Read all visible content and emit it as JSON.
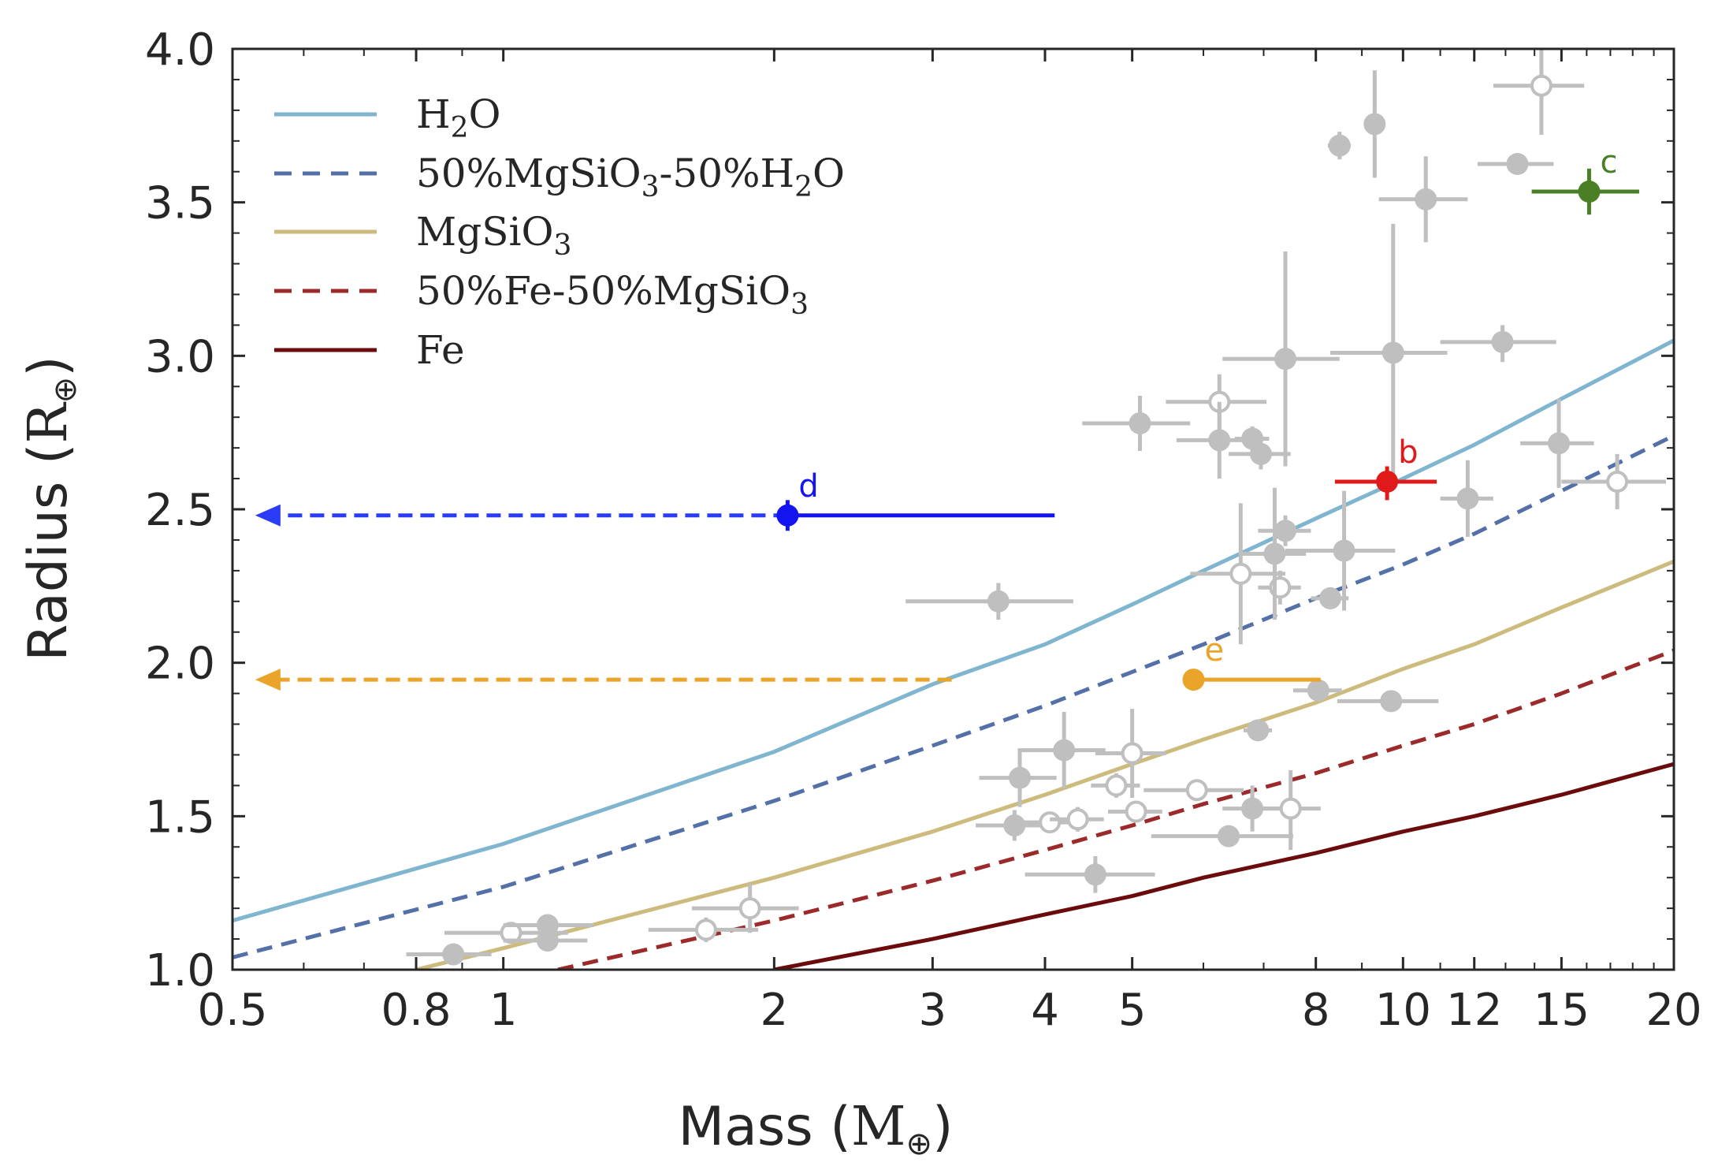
{
  "chart_data": {
    "type": "scatter",
    "xscale": "log",
    "xlim": [
      0.5,
      20
    ],
    "ylim": [
      1.0,
      4.0
    ],
    "xlabel_main": "Mass (",
    "xlabel_unit": "M",
    "xlabel_sub": "⊕",
    "xlabel_close": ")",
    "ylabel_main": "Radius (",
    "ylabel_unit": "R",
    "ylabel_sub": "⊕",
    "ylabel_close": ")",
    "xticks": [
      0.5,
      0.8,
      1,
      2,
      3,
      4,
      5,
      8,
      10,
      12,
      15,
      20
    ],
    "xtick_labels": [
      "0.5",
      "0.8",
      "1",
      "2",
      "3",
      "4",
      "5",
      "8",
      "10",
      "12",
      "15",
      "20"
    ],
    "yticks": [
      1.0,
      1.5,
      2.0,
      2.5,
      3.0,
      3.5,
      4.0
    ],
    "ytick_labels": [
      "1.0",
      "1.5",
      "2.0",
      "2.5",
      "3.0",
      "3.5",
      "4.0"
    ],
    "legend": [
      {
        "key": "h2o",
        "parts": [
          {
            "t": "H",
            "s": ""
          },
          {
            "t": "2",
            "s": "sub"
          },
          {
            "t": "O",
            "s": ""
          }
        ],
        "color": "#7fb5ce",
        "dash": false
      },
      {
        "key": "mix_water",
        "parts": [
          {
            "t": "50%MgSiO",
            "s": ""
          },
          {
            "t": "3",
            "s": "sub"
          },
          {
            "t": "-50%H",
            "s": ""
          },
          {
            "t": "2",
            "s": "sub"
          },
          {
            "t": "O",
            "s": ""
          }
        ],
        "color": "#5470a8",
        "dash": true
      },
      {
        "key": "rock",
        "parts": [
          {
            "t": "MgSiO",
            "s": ""
          },
          {
            "t": "3",
            "s": "sub"
          }
        ],
        "color": "#ccbb7c",
        "dash": false
      },
      {
        "key": "mix_iron",
        "parts": [
          {
            "t": "50%Fe-50%MgSiO",
            "s": ""
          },
          {
            "t": "3",
            "s": "sub"
          }
        ],
        "color": "#9c2a2a",
        "dash": true
      },
      {
        "key": "iron",
        "parts": [
          {
            "t": "Fe",
            "s": ""
          }
        ],
        "color": "#6b0b0b",
        "dash": false
      }
    ],
    "curves": [
      {
        "name": "H2O",
        "color": "#7fb5ce",
        "dash": false,
        "points": [
          [
            0.5,
            1.16
          ],
          [
            1,
            1.41
          ],
          [
            2,
            1.71
          ],
          [
            3,
            1.93
          ],
          [
            4,
            2.06
          ],
          [
            5,
            2.19
          ],
          [
            6,
            2.3
          ],
          [
            8,
            2.47
          ],
          [
            10,
            2.6
          ],
          [
            12,
            2.71
          ],
          [
            15,
            2.86
          ],
          [
            20,
            3.05
          ]
        ]
      },
      {
        "name": "50%MgSiO3-50%H2O",
        "color": "#5470a8",
        "dash": true,
        "points": [
          [
            0.5,
            1.04
          ],
          [
            1,
            1.27
          ],
          [
            2,
            1.55
          ],
          [
            3,
            1.73
          ],
          [
            4,
            1.86
          ],
          [
            5,
            1.97
          ],
          [
            6,
            2.06
          ],
          [
            8,
            2.21
          ],
          [
            10,
            2.32
          ],
          [
            12,
            2.42
          ],
          [
            15,
            2.56
          ],
          [
            20,
            2.74
          ]
        ]
      },
      {
        "name": "MgSiO3",
        "color": "#ccbb7c",
        "dash": false,
        "points": [
          [
            0.8,
            1.0
          ],
          [
            1,
            1.07
          ],
          [
            2,
            1.3
          ],
          [
            3,
            1.45
          ],
          [
            4,
            1.57
          ],
          [
            5,
            1.67
          ],
          [
            6,
            1.75
          ],
          [
            8,
            1.87
          ],
          [
            10,
            1.98
          ],
          [
            12,
            2.06
          ],
          [
            15,
            2.18
          ],
          [
            20,
            2.33
          ]
        ]
      },
      {
        "name": "50%Fe-50%MgSiO3",
        "color": "#9c2a2a",
        "dash": true,
        "points": [
          [
            1.15,
            1.0
          ],
          [
            2,
            1.16
          ],
          [
            3,
            1.29
          ],
          [
            4,
            1.39
          ],
          [
            5,
            1.47
          ],
          [
            6,
            1.54
          ],
          [
            8,
            1.64
          ],
          [
            10,
            1.73
          ],
          [
            12,
            1.8
          ],
          [
            15,
            1.9
          ],
          [
            20,
            2.04
          ]
        ]
      },
      {
        "name": "Fe",
        "color": "#6b0b0b",
        "dash": false,
        "points": [
          [
            2.0,
            1.0
          ],
          [
            3,
            1.1
          ],
          [
            4,
            1.18
          ],
          [
            5,
            1.24
          ],
          [
            6,
            1.3
          ],
          [
            8,
            1.38
          ],
          [
            10,
            1.45
          ],
          [
            12,
            1.5
          ],
          [
            15,
            1.57
          ],
          [
            20,
            1.67
          ]
        ]
      }
    ],
    "background_planets": [
      {
        "x": 0.88,
        "y": 1.05,
        "xl": 0.78,
        "xh": 0.97,
        "yl": 1.03,
        "yh": 1.07,
        "open": false
      },
      {
        "x": 1.02,
        "y": 1.12,
        "xl": 0.86,
        "xh": 1.18,
        "yl": 1.1,
        "yh": 1.14,
        "open": true
      },
      {
        "x": 1.12,
        "y": 1.145,
        "xl": 1.0,
        "xh": 1.26,
        "yl": 1.12,
        "yh": 1.17,
        "open": false
      },
      {
        "x": 1.12,
        "y": 1.095,
        "xl": 1.0,
        "xh": 1.24,
        "yl": 1.07,
        "yh": 1.12,
        "open": false
      },
      {
        "x": 1.68,
        "y": 1.13,
        "xl": 1.45,
        "xh": 1.92,
        "yl": 1.09,
        "yh": 1.17,
        "open": true
      },
      {
        "x": 1.88,
        "y": 1.2,
        "xl": 1.62,
        "xh": 2.13,
        "yl": 1.12,
        "yh": 1.28,
        "open": true
      },
      {
        "x": 3.75,
        "y": 1.625,
        "xl": 3.38,
        "xh": 4.12,
        "yl": 1.53,
        "yh": 1.72,
        "open": false
      },
      {
        "x": 3.7,
        "y": 1.47,
        "xl": 3.35,
        "xh": 4.05,
        "yl": 1.42,
        "yh": 1.52,
        "open": false
      },
      {
        "x": 4.05,
        "y": 1.48,
        "xl": 3.78,
        "xh": 4.32,
        "yl": 1.46,
        "yh": 1.5,
        "open": true
      },
      {
        "x": 4.2,
        "y": 1.715,
        "xl": 3.73,
        "xh": 4.67,
        "yl": 1.59,
        "yh": 1.84,
        "open": false
      },
      {
        "x": 4.35,
        "y": 1.49,
        "xl": 4.05,
        "xh": 4.65,
        "yl": 1.45,
        "yh": 1.53,
        "open": true
      },
      {
        "x": 4.55,
        "y": 1.31,
        "xl": 3.8,
        "xh": 5.3,
        "yl": 1.25,
        "yh": 1.37,
        "open": false
      },
      {
        "x": 4.8,
        "y": 1.6,
        "xl": 4.5,
        "xh": 5.1,
        "yl": 1.56,
        "yh": 1.64,
        "open": true
      },
      {
        "x": 5.0,
        "y": 1.705,
        "xl": 4.55,
        "xh": 5.45,
        "yl": 1.56,
        "yh": 1.85,
        "open": true
      },
      {
        "x": 5.05,
        "y": 1.515,
        "xl": 4.7,
        "xh": 5.4,
        "yl": 1.48,
        "yh": 1.55,
        "open": true
      },
      {
        "x": 5.9,
        "y": 1.585,
        "xl": 5.15,
        "xh": 6.65,
        "yl": 1.55,
        "yh": 1.62,
        "open": true
      },
      {
        "x": 6.4,
        "y": 1.435,
        "xl": 5.25,
        "xh": 7.55,
        "yl": 1.42,
        "yh": 1.45,
        "open": false
      },
      {
        "x": 6.8,
        "y": 1.525,
        "xl": 6.3,
        "xh": 7.3,
        "yl": 1.45,
        "yh": 1.6,
        "open": false
      },
      {
        "x": 7.5,
        "y": 1.525,
        "xl": 6.9,
        "xh": 8.1,
        "yl": 1.39,
        "yh": 1.65,
        "open": true
      },
      {
        "x": 6.9,
        "y": 1.78,
        "xl": 6.65,
        "xh": 7.15,
        "yl": 1.76,
        "yh": 1.8,
        "open": false
      },
      {
        "x": 8.05,
        "y": 1.91,
        "xl": 7.55,
        "xh": 8.55,
        "yl": 1.89,
        "yh": 1.93,
        "open": false
      },
      {
        "x": 9.7,
        "y": 1.875,
        "xl": 8.45,
        "xh": 10.95,
        "yl": 1.84,
        "yh": 1.91,
        "open": false
      },
      {
        "x": 3.55,
        "y": 2.2,
        "xl": 2.8,
        "xh": 4.3,
        "yl": 2.14,
        "yh": 2.26,
        "open": false
      },
      {
        "x": 6.6,
        "y": 2.29,
        "xl": 5.8,
        "xh": 7.4,
        "yl": 2.06,
        "yh": 2.52,
        "open": true
      },
      {
        "x": 7.3,
        "y": 2.245,
        "xl": 6.9,
        "xh": 7.7,
        "yl": 2.19,
        "yh": 2.3,
        "open": true
      },
      {
        "x": 8.3,
        "y": 2.21,
        "xl": 7.9,
        "xh": 8.7,
        "yl": 2.18,
        "yh": 2.24,
        "open": false
      },
      {
        "x": 7.2,
        "y": 2.355,
        "xl": 6.6,
        "xh": 7.8,
        "yl": 2.14,
        "yh": 2.57,
        "open": false
      },
      {
        "x": 7.4,
        "y": 2.43,
        "xl": 6.9,
        "xh": 7.9,
        "yl": 2.38,
        "yh": 2.48,
        "open": false
      },
      {
        "x": 8.6,
        "y": 2.365,
        "xl": 7.4,
        "xh": 9.8,
        "yl": 2.17,
        "yh": 2.56,
        "open": false
      },
      {
        "x": 11.8,
        "y": 2.535,
        "xl": 11.0,
        "xh": 12.6,
        "yl": 2.41,
        "yh": 2.66,
        "open": false
      },
      {
        "x": 14.9,
        "y": 2.715,
        "xl": 13.5,
        "xh": 16.3,
        "yl": 2.57,
        "yh": 2.86,
        "open": false
      },
      {
        "x": 17.3,
        "y": 2.59,
        "xl": 15.0,
        "xh": 19.6,
        "yl": 2.5,
        "yh": 2.68,
        "open": true
      },
      {
        "x": 5.1,
        "y": 2.78,
        "xl": 4.4,
        "xh": 5.8,
        "yl": 2.69,
        "yh": 2.87,
        "open": false
      },
      {
        "x": 6.25,
        "y": 2.85,
        "xl": 5.45,
        "xh": 7.05,
        "yl": 2.76,
        "yh": 2.94,
        "open": true
      },
      {
        "x": 6.25,
        "y": 2.725,
        "xl": 5.6,
        "xh": 6.9,
        "yl": 2.6,
        "yh": 2.85,
        "open": false
      },
      {
        "x": 6.8,
        "y": 2.73,
        "xl": 6.5,
        "xh": 7.1,
        "yl": 2.69,
        "yh": 2.77,
        "open": false
      },
      {
        "x": 6.95,
        "y": 2.68,
        "xl": 6.4,
        "xh": 7.5,
        "yl": 2.63,
        "yh": 2.73,
        "open": false
      },
      {
        "x": 7.4,
        "y": 2.99,
        "xl": 6.3,
        "xh": 8.5,
        "yl": 2.64,
        "yh": 3.34,
        "open": false
      },
      {
        "x": 9.75,
        "y": 3.01,
        "xl": 8.3,
        "xh": 11.2,
        "yl": 2.57,
        "yh": 3.43,
        "open": false
      },
      {
        "x": 12.9,
        "y": 3.045,
        "xl": 11.0,
        "xh": 14.8,
        "yl": 2.98,
        "yh": 3.1,
        "open": false
      },
      {
        "x": 10.6,
        "y": 3.51,
        "xl": 9.4,
        "xh": 11.8,
        "yl": 3.37,
        "yh": 3.65,
        "open": false
      },
      {
        "x": 13.4,
        "y": 3.625,
        "xl": 12.1,
        "xh": 14.7,
        "yl": 3.59,
        "yh": 3.66,
        "open": false
      },
      {
        "x": 8.5,
        "y": 3.685,
        "xl": 8.25,
        "xh": 8.75,
        "yl": 3.64,
        "yh": 3.73,
        "open": false
      },
      {
        "x": 9.3,
        "y": 3.755,
        "xl": 9.1,
        "xh": 9.5,
        "yl": 3.58,
        "yh": 3.93,
        "open": false
      },
      {
        "x": 14.25,
        "y": 3.88,
        "xl": 12.6,
        "xh": 15.9,
        "yl": 3.72,
        "yh": 4.0,
        "open": true
      }
    ],
    "highlight_planets": [
      {
        "label": "b",
        "x": 9.6,
        "y": 2.59,
        "xl": 8.4,
        "xh": 10.9,
        "yl": 2.53,
        "yh": 2.64,
        "color": "#e0191b"
      },
      {
        "label": "c",
        "x": 16.1,
        "y": 3.535,
        "xl": 13.9,
        "xh": 18.3,
        "yl": 3.46,
        "yh": 3.61,
        "color": "#4b7f26"
      },
      {
        "label": "d",
        "x": 2.07,
        "y": 2.48,
        "xl": 2.07,
        "xh": 4.1,
        "yl": 2.43,
        "yh": 2.53,
        "color": "#1414f0",
        "arrow_to": 0.53,
        "arrow_color": "#2a3cf5"
      },
      {
        "label": "e",
        "x": 5.85,
        "y": 1.945,
        "xl": 5.85,
        "xh": 8.1,
        "yl": 1.91,
        "yh": 1.98,
        "color": "#eba42a",
        "arrow_to": 0.53,
        "arrow_color": "#eba42a",
        "dash_start": 3.15
      }
    ]
  }
}
